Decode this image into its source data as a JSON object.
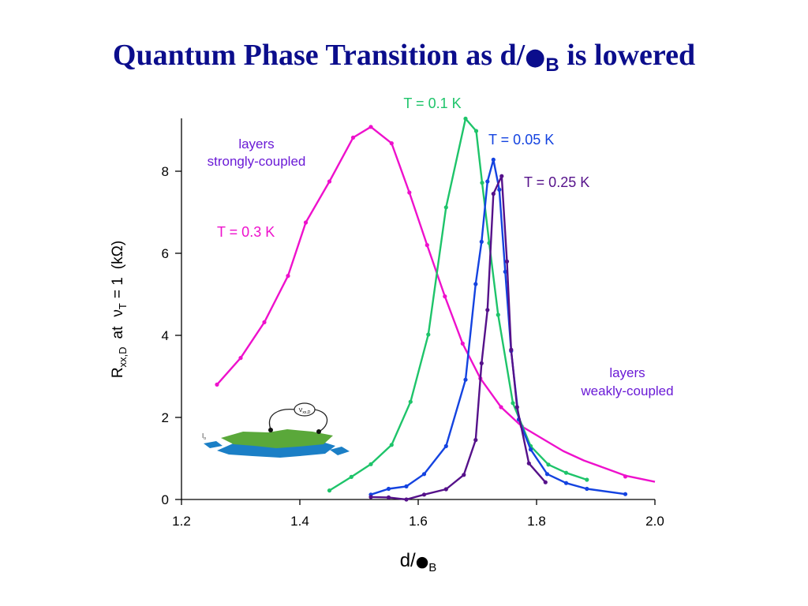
{
  "title": {
    "prefix": "Quantum Phase Transition as d/",
    "dot": "●",
    "sub": "B",
    "suffix": " is lowered"
  },
  "chart_data": {
    "type": "line",
    "title": "Quantum Phase Transition as d/●B is lowered",
    "xlabel": "d/●B",
    "ylabel": "Rxx,D at νT = 1 (kΩ)",
    "xlim": [
      1.2,
      2.0
    ],
    "ylim": [
      0,
      9.2
    ],
    "x_ticks": [
      "1.2",
      "1.4",
      "1.6",
      "1.8",
      "2.0"
    ],
    "y_ticks": [
      "0",
      "2",
      "4",
      "6",
      "8"
    ],
    "grid": false,
    "legend": "none",
    "series": [
      {
        "name": "T = 0.3 K",
        "color": "#ee11cc",
        "points": [
          [
            1.26,
            2.8
          ],
          [
            1.3,
            3.45
          ],
          [
            1.34,
            4.32
          ],
          [
            1.38,
            5.45
          ],
          [
            1.41,
            6.75
          ],
          [
            1.45,
            7.75
          ],
          [
            1.49,
            8.82
          ],
          [
            1.52,
            9.08
          ],
          [
            1.555,
            8.68
          ],
          [
            1.585,
            7.48
          ],
          [
            1.615,
            6.2
          ],
          [
            1.645,
            4.95
          ],
          [
            1.675,
            3.8
          ],
          [
            1.705,
            2.95
          ],
          [
            1.74,
            2.25
          ],
          [
            1.775,
            1.78
          ],
          [
            1.81,
            1.48
          ],
          [
            1.845,
            1.18
          ],
          [
            1.88,
            0.95
          ],
          [
            1.92,
            0.74
          ],
          [
            1.95,
            0.58
          ],
          [
            2.0,
            0.43
          ]
        ],
        "markers_x_max": 1.79,
        "markers_extra": [
          [
            1.95,
            0.56
          ]
        ]
      },
      {
        "name": "T = 0.1 K",
        "color": "#1ec46a",
        "points": [
          [
            1.45,
            0.22
          ],
          [
            1.487,
            0.55
          ],
          [
            1.52,
            0.86
          ],
          [
            1.555,
            1.33
          ],
          [
            1.587,
            2.38
          ],
          [
            1.617,
            4.02
          ],
          [
            1.647,
            7.12
          ],
          [
            1.68,
            9.28
          ],
          [
            1.698,
            8.98
          ],
          [
            1.708,
            7.72
          ],
          [
            1.72,
            6.25
          ],
          [
            1.735,
            4.5
          ],
          [
            1.76,
            2.35
          ],
          [
            1.79,
            1.3
          ],
          [
            1.82,
            0.85
          ],
          [
            1.85,
            0.65
          ],
          [
            1.885,
            0.48
          ]
        ]
      },
      {
        "name": "T = 0.05 K",
        "color": "#1443e0",
        "points": [
          [
            1.52,
            0.12
          ],
          [
            1.55,
            0.26
          ],
          [
            1.58,
            0.32
          ],
          [
            1.61,
            0.62
          ],
          [
            1.647,
            1.3
          ],
          [
            1.68,
            2.92
          ],
          [
            1.697,
            5.25
          ],
          [
            1.707,
            6.28
          ],
          [
            1.717,
            7.75
          ],
          [
            1.727,
            8.28
          ],
          [
            1.737,
            7.55
          ],
          [
            1.747,
            5.55
          ],
          [
            1.757,
            3.62
          ],
          [
            1.77,
            1.95
          ],
          [
            1.79,
            1.22
          ],
          [
            1.818,
            0.62
          ],
          [
            1.85,
            0.4
          ],
          [
            1.885,
            0.26
          ],
          [
            1.95,
            0.13
          ]
        ]
      },
      {
        "name": "T = 0.25 K",
        "color": "#55118a",
        "points": [
          [
            1.52,
            0.06
          ],
          [
            1.55,
            0.05
          ],
          [
            1.58,
            0.0
          ],
          [
            1.61,
            0.12
          ],
          [
            1.647,
            0.25
          ],
          [
            1.677,
            0.6
          ],
          [
            1.697,
            1.45
          ],
          [
            1.707,
            3.32
          ],
          [
            1.717,
            4.62
          ],
          [
            1.727,
            7.45
          ],
          [
            1.741,
            7.88
          ],
          [
            1.75,
            5.8
          ],
          [
            1.757,
            3.65
          ],
          [
            1.767,
            2.25
          ],
          [
            1.787,
            0.88
          ],
          [
            1.815,
            0.42
          ]
        ]
      }
    ],
    "annotations": [
      {
        "id": "t01",
        "text": "T = 0.1 K",
        "color": "#1ec46a"
      },
      {
        "id": "t005",
        "text": "T = 0.05 K",
        "color": "#1443e0"
      },
      {
        "id": "t025",
        "text": "T = 0.25 K",
        "color": "#55118a"
      },
      {
        "id": "t03",
        "text": "T = 0.3 K",
        "color": "#ee11cc"
      },
      {
        "id": "strong1",
        "text": "layers",
        "color": "#6a1ad6"
      },
      {
        "id": "strong2",
        "text": "strongly-coupled",
        "color": "#6a1ad6"
      },
      {
        "id": "weak1",
        "text": "layers",
        "color": "#6a1ad6"
      },
      {
        "id": "weak2",
        "text": "weakly-coupled",
        "color": "#6a1ad6"
      }
    ],
    "inset": {
      "voltage_label_main": "V",
      "voltage_label_sub": "xx,D",
      "current_label_main": "I",
      "current_label_sub": "o",
      "colors": {
        "top_layer": "#5aa83a",
        "bottom_layer": "#1b7fc6",
        "arrow": "#1b7fc6"
      }
    }
  },
  "axis_labels": {
    "x_main": "d/",
    "x_dot": "●",
    "x_sub": "B",
    "y_R": "R",
    "y_R_sub": "xx,D",
    "y_at": "at",
    "y_nu": "ν",
    "y_nu_sub": "T",
    "y_eq": "= 1",
    "y_unit": "(kΩ)"
  }
}
